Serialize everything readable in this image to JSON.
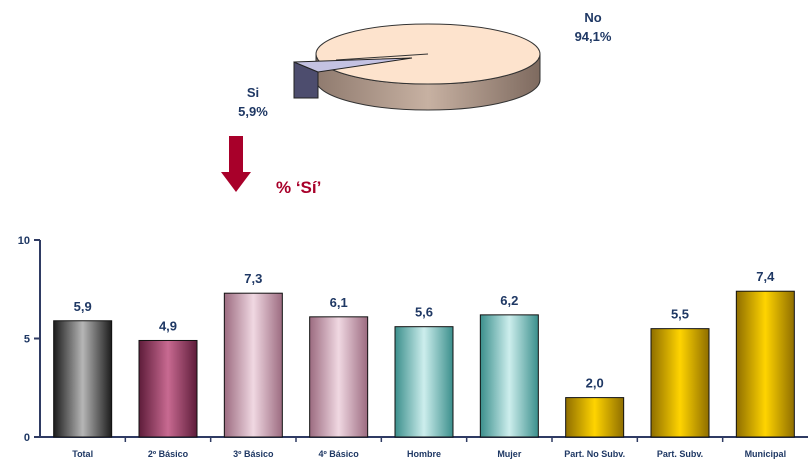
{
  "pie": {
    "type": "pie",
    "slices": [
      {
        "label": "No",
        "value": 94.1,
        "value_text": "94,1%"
      },
      {
        "label": "Si",
        "value": 5.9,
        "value_text": "5,9%"
      }
    ],
    "colors": {
      "no": "#fde3cd",
      "no_side": "#c2a898",
      "si": "#c4c2e2",
      "si_side": "#505070"
    }
  },
  "arrow_label": "% ‘Sí’",
  "chart_data": {
    "type": "bar",
    "categories": [
      "Total",
      "2º Básico",
      "3º Básico",
      "4º Básico",
      "Hombre",
      "Mujer",
      "Part. No Subv.",
      "Part. Subv.",
      "Municipal"
    ],
    "values": [
      5.9,
      4.9,
      7.3,
      6.1,
      5.6,
      6.2,
      2.0,
      5.5,
      7.4
    ],
    "value_labels": [
      "5,9",
      "4,9",
      "7,3",
      "6,1",
      "5,6",
      "6,2",
      "2,0",
      "5,5",
      "7,4"
    ],
    "ylim": [
      0,
      10
    ],
    "yticks": [
      0,
      5,
      10
    ],
    "title": "",
    "xlabel": "",
    "ylabel": "",
    "grid": false,
    "colors": {
      "gray": "#6e6e6e",
      "purple": "#9a3f62",
      "pink": "#d4a6b6",
      "teal": "#7fc7c4",
      "gold": "#e7bc10",
      "axis": "#2f3b63",
      "label": "#1f3864",
      "accent": "#a8002a"
    }
  }
}
